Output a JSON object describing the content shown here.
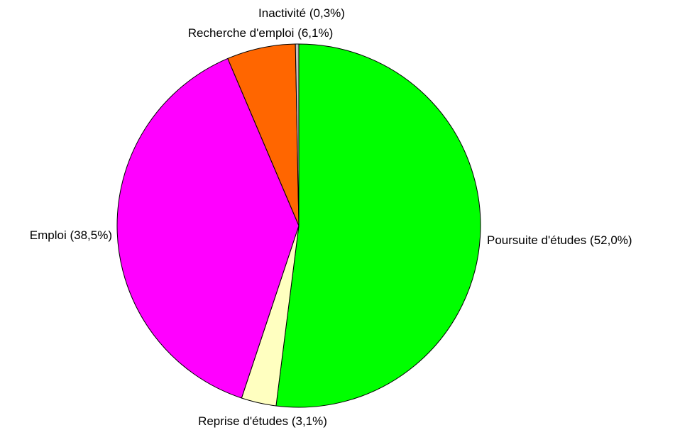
{
  "chart_data": {
    "type": "pie",
    "categories": [
      "Poursuite d'études",
      "Reprise d'études",
      "Emploi",
      "Recherche d'emploi",
      "Inactivité"
    ],
    "values": [
      52.0,
      3.1,
      38.5,
      6.1,
      0.3
    ],
    "value_labels": [
      "(52,0%)",
      "(3,1%)",
      "(38,5%)",
      "(6,1%)",
      "(0,3%)"
    ],
    "colors": [
      "#00ff00",
      "#ffffc0",
      "#ff00ff",
      "#ff6600",
      "#c0c0c0"
    ]
  }
}
